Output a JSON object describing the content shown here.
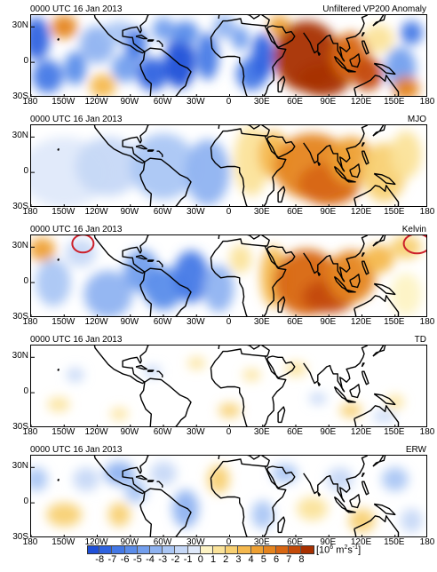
{
  "panels": [
    {
      "title_left": "0000 UTC 16 Jan 2013",
      "title_right": "Unfiltered VP200 Anomaly"
    },
    {
      "title_left": "0000 UTC 16 Jan 2013",
      "title_right": "MJO"
    },
    {
      "title_left": "0000 UTC 16 Jan 2013",
      "title_right": "Kelvin"
    },
    {
      "title_left": "0000 UTC 16 Jan 2013",
      "title_right": "TD"
    },
    {
      "title_left": "0000 UTC 16 Jan 2013",
      "title_right": "ERW"
    }
  ],
  "lat_labels": [
    "30N",
    "0",
    "30S"
  ],
  "lon_labels": [
    "180",
    "150W",
    "120W",
    "90W",
    "60W",
    "30W",
    "0",
    "30E",
    "60E",
    "90E",
    "120E",
    "150E",
    "180"
  ],
  "colorbar": {
    "ticks": [
      "-8",
      "-7",
      "-6",
      "-5",
      "-4",
      "-3",
      "-2",
      "-1",
      "0",
      "1",
      "2",
      "3",
      "4",
      "5",
      "6",
      "7",
      "8"
    ],
    "unit_main": "[10",
    "unit_exp": "6",
    "unit_mid": " m",
    "unit_exp2": "2",
    "unit_mid2": "s",
    "unit_exp3": "-1",
    "unit_end": "]",
    "colors": [
      "#1f4fd8",
      "#2f63e0",
      "#4478e6",
      "#5a8cea",
      "#739fee",
      "#8fb3f1",
      "#aac6f4",
      "#c6d8f7",
      "#dfe9fa",
      "#fdf3c4",
      "#fbe39a",
      "#f8d072",
      "#f4b84e",
      "#eea032",
      "#e5841e",
      "#d86612",
      "#c44a08",
      "#a83000"
    ]
  },
  "annotations": [
    {
      "panel": "Kelvin",
      "shape": "ellipse",
      "color": "#cc1f2a"
    },
    {
      "panel": "Kelvin",
      "shape": "ellipse",
      "color": "#cc1f2a"
    }
  ]
}
